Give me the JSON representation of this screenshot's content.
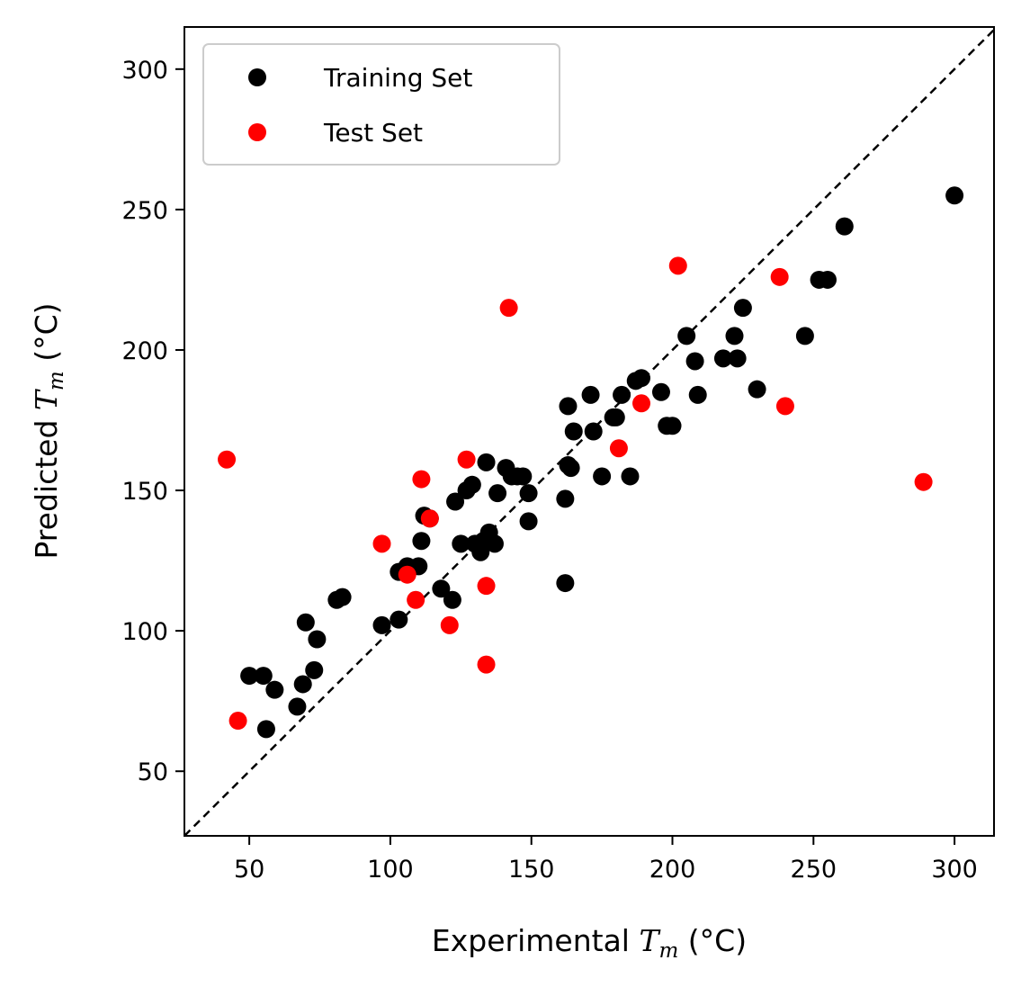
{
  "chart_data": {
    "type": "scatter",
    "xlabel": "Experimental",
    "ylabel": "Predicted",
    "xlim": [
      27,
      314
    ],
    "ylim": [
      27,
      315
    ],
    "xticks": [
      50,
      100,
      150,
      200,
      250,
      300
    ],
    "yticks": [
      50,
      100,
      150,
      200,
      250,
      300
    ],
    "legend_position": "top-left",
    "grid": false,
    "reference_line": "y = x (dashed)",
    "series": [
      {
        "name": "Training Set",
        "color": "#000000",
        "points": [
          [
            50,
            84
          ],
          [
            55,
            84
          ],
          [
            56,
            65
          ],
          [
            59,
            79
          ],
          [
            67,
            73
          ],
          [
            69,
            81
          ],
          [
            70,
            103
          ],
          [
            73,
            86
          ],
          [
            74,
            97
          ],
          [
            81,
            111
          ],
          [
            83,
            112
          ],
          [
            97,
            102
          ],
          [
            103,
            104
          ],
          [
            103,
            121
          ],
          [
            106,
            123
          ],
          [
            110,
            123
          ],
          [
            111,
            132
          ],
          [
            112,
            141
          ],
          [
            114,
            140
          ],
          [
            118,
            115
          ],
          [
            122,
            111
          ],
          [
            123,
            146
          ],
          [
            125,
            131
          ],
          [
            127,
            150
          ],
          [
            129,
            152
          ],
          [
            130,
            131
          ],
          [
            132,
            128
          ],
          [
            133,
            132
          ],
          [
            134,
            160
          ],
          [
            135,
            135
          ],
          [
            137,
            131
          ],
          [
            138,
            149
          ],
          [
            141,
            158
          ],
          [
            143,
            155
          ],
          [
            145,
            155
          ],
          [
            147,
            155
          ],
          [
            149,
            149
          ],
          [
            149,
            139
          ],
          [
            162,
            147
          ],
          [
            163,
            180
          ],
          [
            163,
            159
          ],
          [
            164,
            158
          ],
          [
            165,
            171
          ],
          [
            162,
            117
          ],
          [
            172,
            171
          ],
          [
            171,
            184
          ],
          [
            175,
            155
          ],
          [
            179,
            176
          ],
          [
            180,
            176
          ],
          [
            182,
            184
          ],
          [
            185,
            155
          ],
          [
            187,
            189
          ],
          [
            189,
            190
          ],
          [
            196,
            185
          ],
          [
            198,
            173
          ],
          [
            200,
            173
          ],
          [
            205,
            205
          ],
          [
            208,
            196
          ],
          [
            209,
            184
          ],
          [
            218,
            197
          ],
          [
            222,
            205
          ],
          [
            223,
            197
          ],
          [
            225,
            215
          ],
          [
            230,
            186
          ],
          [
            247,
            205
          ],
          [
            252,
            225
          ],
          [
            255,
            225
          ],
          [
            261,
            244
          ],
          [
            300,
            255
          ]
        ]
      },
      {
        "name": "Test Set",
        "color": "#ff0000",
        "points": [
          [
            42,
            161
          ],
          [
            46,
            68
          ],
          [
            97,
            131
          ],
          [
            106,
            120
          ],
          [
            109,
            111
          ],
          [
            111,
            154
          ],
          [
            114,
            140
          ],
          [
            121,
            102
          ],
          [
            127,
            161
          ],
          [
            134,
            116
          ],
          [
            134,
            88
          ],
          [
            142,
            215
          ],
          [
            181,
            165
          ],
          [
            189,
            181
          ],
          [
            202,
            230
          ],
          [
            238,
            226
          ],
          [
            240,
            180
          ],
          [
            289,
            153
          ]
        ]
      }
    ]
  }
}
